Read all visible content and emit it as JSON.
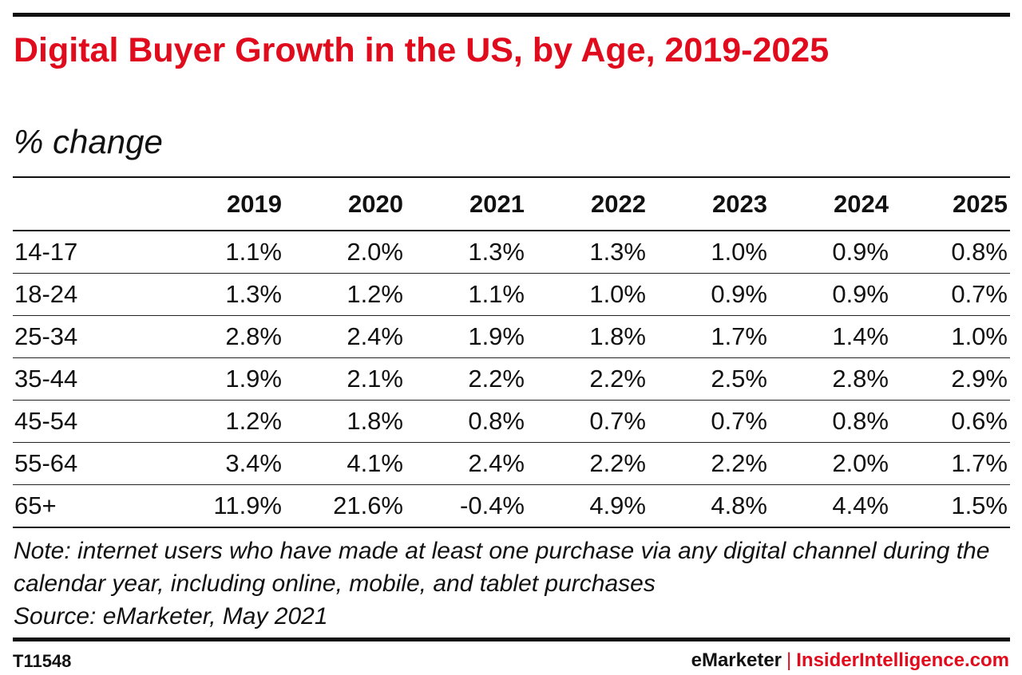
{
  "title": "Digital Buyer Growth in the US, by Age, 2019-2025",
  "subtitle": "% change",
  "note": "Note: internet users who have made at least one purchase via any digital channel during the calendar year, including online, mobile, and tablet purchases",
  "source": "Source: eMarketer, May 2021",
  "chart_id": "T11548",
  "brand": {
    "left": "eMarketer",
    "separator": "|",
    "right": "InsiderIntelligence.com"
  },
  "colors": {
    "accent": "#e00b1c",
    "text": "#111111"
  },
  "chart_data": {
    "type": "table",
    "title": "Digital Buyer Growth in the US, by Age, 2019-2025",
    "subtitle": "% change",
    "columns": [
      "",
      "2019",
      "2020",
      "2021",
      "2022",
      "2023",
      "2024",
      "2025"
    ],
    "rows": [
      {
        "label": "14-17",
        "values": [
          "1.1%",
          "2.0%",
          "1.3%",
          "1.3%",
          "1.0%",
          "0.9%",
          "0.8%"
        ]
      },
      {
        "label": "18-24",
        "values": [
          "1.3%",
          "1.2%",
          "1.1%",
          "1.0%",
          "0.9%",
          "0.9%",
          "0.7%"
        ]
      },
      {
        "label": "25-34",
        "values": [
          "2.8%",
          "2.4%",
          "1.9%",
          "1.8%",
          "1.7%",
          "1.4%",
          "1.0%"
        ]
      },
      {
        "label": "35-44",
        "values": [
          "1.9%",
          "2.1%",
          "2.2%",
          "2.2%",
          "2.5%",
          "2.8%",
          "2.9%"
        ]
      },
      {
        "label": "45-54",
        "values": [
          "1.2%",
          "1.8%",
          "0.8%",
          "0.7%",
          "0.7%",
          "0.8%",
          "0.6%"
        ]
      },
      {
        "label": "55-64",
        "values": [
          "3.4%",
          "4.1%",
          "2.4%",
          "2.2%",
          "2.2%",
          "2.0%",
          "1.7%"
        ]
      },
      {
        "label": "65+",
        "values": [
          "11.9%",
          "21.6%",
          "-0.4%",
          "4.9%",
          "4.8%",
          "4.4%",
          "1.5%"
        ]
      }
    ]
  }
}
